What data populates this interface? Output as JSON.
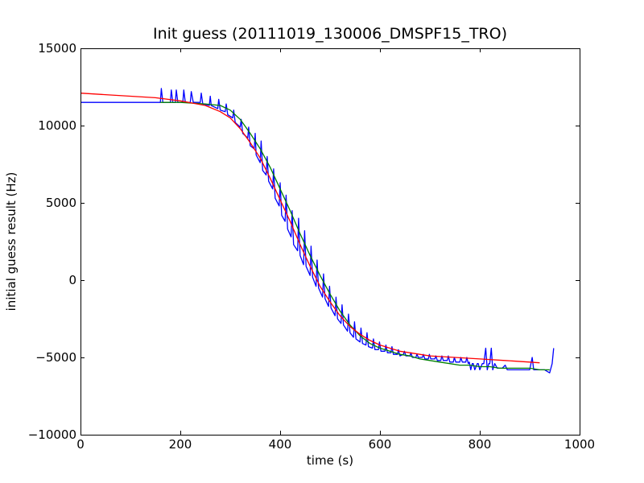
{
  "chart_data": {
    "type": "line",
    "title": "Init guess (20111019_130006_DMSPF15_TRO)",
    "xlabel": "time (s)",
    "ylabel": "initial guess result (Hz)",
    "xlim": [
      0,
      1000
    ],
    "ylim": [
      -10000,
      15000
    ],
    "xticks": [
      0,
      200,
      400,
      600,
      800,
      1000
    ],
    "yticks": [
      -10000,
      -5000,
      0,
      5000,
      10000,
      15000
    ],
    "xtick_labels": [
      "0",
      "200",
      "400",
      "600",
      "800",
      "1000"
    ],
    "ytick_labels": [
      "−10000",
      "−5000",
      "0",
      "5000",
      "10000",
      "15000"
    ],
    "grid": false,
    "legend": "none",
    "series": [
      {
        "color": "#0000ff",
        "x": [
          0,
          50,
          80,
          100,
          120,
          150,
          160,
          162,
          165,
          180,
          182,
          185,
          190,
          192,
          195,
          205,
          207,
          210,
          220,
          222,
          226,
          240,
          242,
          245,
          258,
          260,
          262,
          275,
          277,
          280,
          290,
          292,
          295,
          305,
          307,
          310,
          320,
          322,
          325,
          335,
          337,
          340,
          348,
          350,
          352,
          360,
          362,
          365,
          372,
          374,
          377,
          385,
          387,
          390,
          398,
          400,
          403,
          410,
          412,
          415,
          422,
          424,
          427,
          435,
          437,
          440,
          447,
          449,
          452,
          460,
          462,
          465,
          472,
          474,
          477,
          485,
          487,
          490,
          497,
          499,
          502,
          510,
          512,
          515,
          522,
          524,
          527,
          535,
          537,
          540,
          547,
          549,
          552,
          560,
          562,
          565,
          572,
          574,
          577,
          585,
          587,
          590,
          597,
          599,
          602,
          610,
          612,
          615,
          622,
          624,
          627,
          635,
          637,
          640,
          647,
          649,
          652,
          660,
          662,
          665,
          672,
          674,
          677,
          685,
          687,
          690,
          697,
          699,
          702,
          710,
          712,
          715,
          722,
          724,
          727,
          735,
          737,
          740,
          747,
          749,
          752,
          760,
          762,
          765,
          772,
          774,
          777,
          779,
          782,
          785,
          787,
          790,
          795,
          797,
          800,
          805,
          808,
          812,
          815,
          818,
          820,
          823,
          826,
          830,
          835,
          845,
          848,
          851,
          855,
          860,
          880,
          900,
          905,
          908,
          912,
          920,
          930,
          940,
          945,
          948
        ],
        "y": [
          11500,
          11500,
          11500,
          11500,
          11500,
          11500,
          11500,
          12400,
          11500,
          11500,
          12300,
          11500,
          11500,
          12300,
          11500,
          11500,
          12300,
          11500,
          11500,
          12200,
          11500,
          11500,
          12100,
          11400,
          11300,
          11900,
          11300,
          11100,
          11700,
          11000,
          10900,
          11400,
          10700,
          10500,
          11000,
          10200,
          9900,
          10400,
          9500,
          9200,
          9900,
          8700,
          8500,
          9500,
          8100,
          7600,
          9000,
          7100,
          6800,
          8000,
          6400,
          5900,
          7200,
          5300,
          4800,
          6300,
          4200,
          3800,
          5500,
          3300,
          2800,
          4500,
          2300,
          1900,
          4000,
          1600,
          1000,
          3200,
          900,
          300,
          2200,
          200,
          -400,
          1300,
          -500,
          -1100,
          400,
          -1200,
          -1700,
          -400,
          -1800,
          -2300,
          -1100,
          -2500,
          -2800,
          -1600,
          -2900,
          -3300,
          -2200,
          -3400,
          -3700,
          -2700,
          -3800,
          -4000,
          -3100,
          -4100,
          -4200,
          -3400,
          -4300,
          -4400,
          -3800,
          -4500,
          -4500,
          -4000,
          -4600,
          -4600,
          -4200,
          -4700,
          -4700,
          -4300,
          -4800,
          -4800,
          -4500,
          -4900,
          -4800,
          -4600,
          -4900,
          -4900,
          -4700,
          -5000,
          -5000,
          -4800,
          -5000,
          -5000,
          -4800,
          -5100,
          -5100,
          -4800,
          -5100,
          -5100,
          -4900,
          -5200,
          -5200,
          -4900,
          -5200,
          -5200,
          -4900,
          -5300,
          -5300,
          -5000,
          -5300,
          -5300,
          -5000,
          -5300,
          -5300,
          -5000,
          -5400,
          -5300,
          -5800,
          -5400,
          -5400,
          -5800,
          -5400,
          -5400,
          -5800,
          -5400,
          -5400,
          -4400,
          -5800,
          -5400,
          -5400,
          -4400,
          -5800,
          -5400,
          -5700,
          -5700,
          -5600,
          -5500,
          -5800,
          -5800,
          -5800,
          -5800,
          -5000,
          -5800,
          -5800,
          -5800,
          -5800,
          -6000,
          -5400,
          -4400
        ]
      },
      {
        "color": "#008000",
        "x": [
          160,
          200,
          250,
          280,
          300,
          320,
          340,
          360,
          380,
          400,
          420,
          440,
          460,
          480,
          500,
          520,
          540,
          560,
          580,
          600,
          620,
          640,
          660,
          680,
          700,
          720,
          740,
          760,
          780,
          800,
          820,
          840,
          860,
          880,
          900,
          920,
          940
        ],
        "y": [
          11500,
          11500,
          11400,
          11300,
          11000,
          10400,
          9500,
          8500,
          7300,
          5900,
          4500,
          3000,
          1600,
          300,
          -900,
          -2000,
          -2900,
          -3600,
          -4100,
          -4400,
          -4600,
          -4800,
          -4900,
          -5100,
          -5200,
          -5300,
          -5400,
          -5500,
          -5500,
          -5600,
          -5600,
          -5700,
          -5700,
          -5700,
          -5700,
          -5800,
          -5800
        ]
      },
      {
        "color": "#ff0000",
        "x": [
          0,
          50,
          100,
          150,
          200,
          250,
          280,
          300,
          320,
          340,
          360,
          380,
          400,
          420,
          440,
          460,
          480,
          500,
          520,
          540,
          560,
          580,
          600,
          620,
          640,
          660,
          680,
          700,
          750,
          800,
          850,
          900,
          920
        ],
        "y": [
          12100,
          12000,
          11900,
          11800,
          11600,
          11300,
          10900,
          10500,
          9800,
          8900,
          7900,
          6600,
          5200,
          3800,
          2300,
          900,
          -400,
          -1400,
          -2300,
          -3000,
          -3500,
          -3900,
          -4200,
          -4400,
          -4600,
          -4700,
          -4800,
          -4900,
          -5000,
          -5100,
          -5200,
          -5300,
          -5350
        ]
      }
    ]
  }
}
